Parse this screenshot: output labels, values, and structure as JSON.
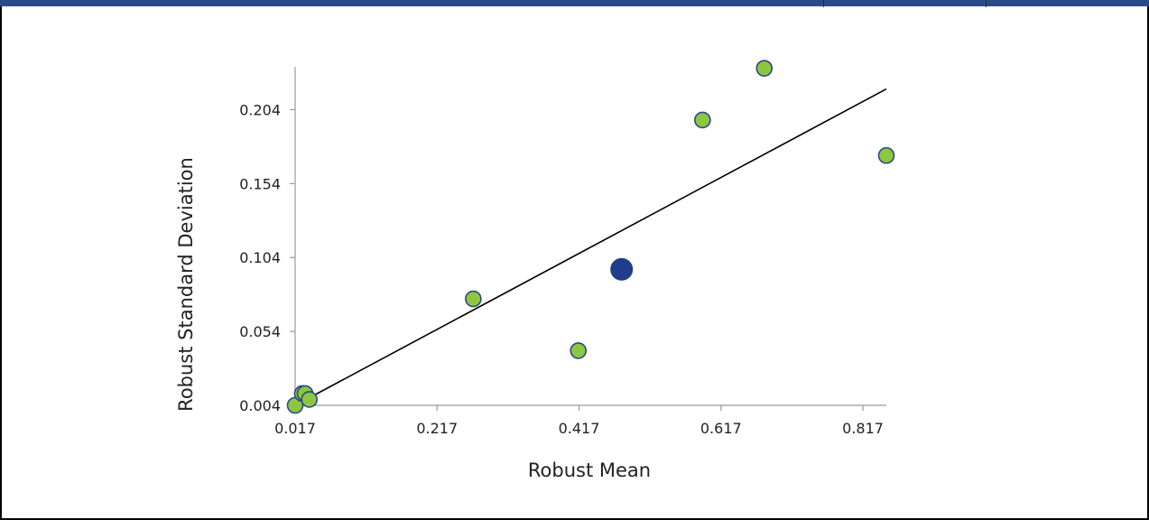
{
  "colors": {
    "header_bar": "#2a4a8a",
    "point_fill": "#8dc63f",
    "point_stroke": "#2a4a8a",
    "highlight_point": "#1f3d8a",
    "trend_line": "#000000",
    "axis": "#9a9a9a"
  },
  "chart_data": {
    "type": "scatter",
    "title": "",
    "xlabel": "Robust Mean",
    "ylabel": "Robust Standard Deviation",
    "xlim": [
      0.017,
      0.85
    ],
    "ylim": [
      0.004,
      0.233
    ],
    "x_ticks": [
      0.017,
      0.217,
      0.417,
      0.617,
      0.817
    ],
    "x_tick_labels": [
      "0.017",
      "0.217",
      "0.417",
      "0.617",
      "0.817"
    ],
    "y_ticks": [
      0.004,
      0.054,
      0.104,
      0.154,
      0.204
    ],
    "y_tick_labels": [
      "0.004",
      "0.054",
      "0.104",
      "0.154",
      "0.204"
    ],
    "grid": false,
    "points": [
      {
        "x": 0.017,
        "y": 0.004
      },
      {
        "x": 0.027,
        "y": 0.012
      },
      {
        "x": 0.031,
        "y": 0.012
      },
      {
        "x": 0.037,
        "y": 0.008
      },
      {
        "x": 0.268,
        "y": 0.076
      },
      {
        "x": 0.416,
        "y": 0.041
      },
      {
        "x": 0.591,
        "y": 0.197
      },
      {
        "x": 0.678,
        "y": 0.232
      },
      {
        "x": 0.85,
        "y": 0.173
      }
    ],
    "highlight_point": {
      "x": 0.477,
      "y": 0.096
    },
    "trend_line": {
      "x": [
        0.017,
        0.85
      ],
      "y": [
        0.004,
        0.218
      ]
    }
  }
}
